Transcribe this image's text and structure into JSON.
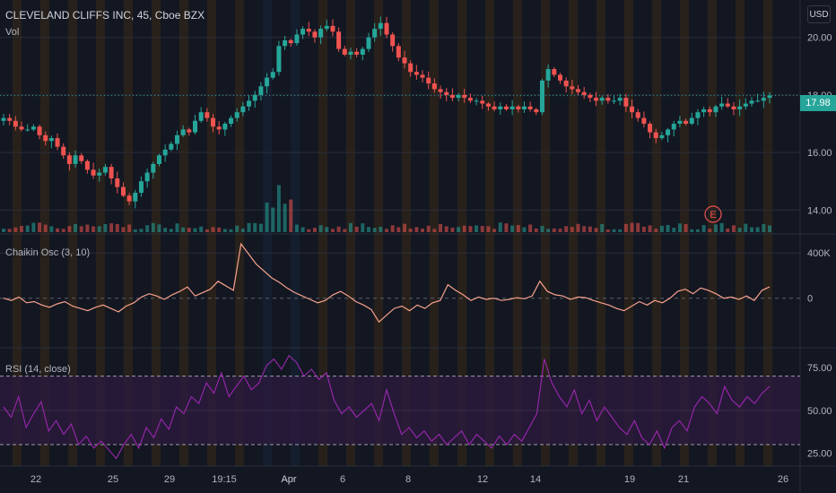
{
  "header": {
    "symbol_title": "CLEVELAND CLIFFS INC, 45, Cboe BZX",
    "volume_label": "Vol",
    "currency": "USD"
  },
  "colors": {
    "background": "#131722",
    "up": "#26a69a",
    "down": "#ef5350",
    "chaikin_line": "#f7a28c",
    "rsi_line": "#9c27b0",
    "rsi_band": "#2a1a3d",
    "session_orange": "#3a2a16",
    "session_blue": "#162538"
  },
  "chart_data": [
    {
      "type": "candlestick",
      "panel": "price",
      "title": "CLEVELAND CLIFFS INC, 45, Cboe BZX",
      "ylabel": "",
      "y_ticks": [
        "20.00",
        "18.00",
        "16.00",
        "14.00"
      ],
      "ylim": [
        13.2,
        21.3
      ],
      "last_price": "17.98",
      "x_ticks": [
        "22",
        "25",
        "29",
        "19:15",
        "Apr",
        "6",
        "8",
        "12",
        "14",
        "19",
        "21",
        "26"
      ],
      "close_path": [
        17.2,
        17.1,
        16.9,
        16.8,
        16.8,
        16.9,
        16.6,
        16.4,
        16.5,
        16.2,
        15.9,
        15.6,
        15.9,
        15.7,
        15.4,
        15.2,
        15.3,
        15.5,
        15.1,
        14.8,
        14.5,
        14.3,
        14.6,
        15.0,
        15.3,
        15.6,
        15.9,
        16.1,
        16.3,
        16.6,
        16.8,
        16.7,
        17.1,
        17.4,
        17.2,
        16.9,
        16.8,
        17.0,
        17.2,
        17.4,
        17.6,
        17.8,
        18.0,
        18.3,
        18.6,
        18.8,
        19.7,
        19.9,
        19.8,
        20.1,
        20.3,
        20.2,
        20.0,
        20.3,
        20.4,
        20.2,
        19.6,
        19.4,
        19.5,
        19.4,
        19.6,
        20.0,
        20.3,
        20.5,
        20.1,
        19.7,
        19.3,
        19.1,
        18.8,
        18.7,
        18.6,
        18.4,
        18.2,
        18.1,
        18.0,
        17.9,
        18.0,
        17.9,
        17.8,
        17.8,
        17.7,
        17.6,
        17.5,
        17.6,
        17.5,
        17.6,
        17.5,
        17.6,
        17.5,
        17.4,
        18.5,
        18.9,
        18.7,
        18.5,
        18.3,
        18.2,
        18.1,
        18.0,
        17.9,
        17.8,
        17.9,
        17.8,
        17.8,
        17.9,
        17.6,
        17.4,
        17.2,
        17.0,
        16.7,
        16.5,
        16.6,
        16.8,
        17.0,
        17.1,
        17.0,
        17.2,
        17.4,
        17.5,
        17.4,
        17.6,
        17.7,
        17.6,
        17.5,
        17.6,
        17.7,
        17.8,
        17.8,
        17.9,
        17.98
      ],
      "volume_spikes": "largest volume bars near the 19:15 / Apr session break",
      "annotation": "E"
    },
    {
      "type": "line",
      "panel": "chaikin",
      "title": "Chaikin Osc (3, 10)",
      "y_ticks": [
        "400K",
        "0"
      ],
      "ylim": [
        -430000,
        560000
      ],
      "values": [
        0,
        -20000,
        10000,
        -40000,
        -30000,
        -60000,
        -80000,
        -50000,
        -30000,
        -70000,
        -90000,
        -110000,
        -80000,
        -60000,
        -90000,
        -120000,
        -70000,
        -40000,
        10000,
        40000,
        20000,
        -10000,
        30000,
        60000,
        100000,
        20000,
        50000,
        80000,
        150000,
        110000,
        70000,
        480000,
        390000,
        300000,
        240000,
        180000,
        140000,
        90000,
        50000,
        20000,
        -10000,
        -40000,
        -20000,
        30000,
        60000,
        20000,
        -30000,
        -60000,
        -100000,
        -210000,
        -150000,
        -90000,
        -70000,
        -110000,
        -60000,
        -90000,
        -40000,
        -20000,
        120000,
        70000,
        30000,
        -20000,
        10000,
        -10000,
        0,
        -20000,
        -10000,
        5000,
        -5000,
        20000,
        150000,
        60000,
        30000,
        20000,
        -10000,
        10000,
        5000,
        -20000,
        -40000,
        -60000,
        -90000,
        -110000,
        -70000,
        -30000,
        -60000,
        -20000,
        -40000,
        0,
        60000,
        80000,
        40000,
        90000,
        70000,
        40000,
        0,
        10000,
        -10000,
        20000,
        -20000,
        70000,
        100000
      ]
    },
    {
      "type": "line",
      "panel": "rsi",
      "title": "RSI (14, close)",
      "y_ticks": [
        "75.00",
        "50.00",
        "25.00"
      ],
      "ylim": [
        18,
        86
      ],
      "bands": [
        30,
        70
      ],
      "values": [
        52,
        46,
        58,
        40,
        48,
        55,
        38,
        44,
        36,
        42,
        30,
        35,
        28,
        32,
        27,
        22,
        30,
        36,
        28,
        40,
        34,
        45,
        39,
        52,
        48,
        58,
        54,
        66,
        60,
        72,
        58,
        64,
        70,
        62,
        66,
        76,
        80,
        74,
        82,
        78,
        70,
        74,
        68,
        72,
        56,
        48,
        52,
        46,
        50,
        54,
        44,
        62,
        48,
        36,
        40,
        34,
        38,
        32,
        36,
        30,
        34,
        38,
        30,
        36,
        32,
        28,
        35,
        30,
        36,
        32,
        40,
        48,
        80,
        66,
        58,
        52,
        62,
        48,
        56,
        44,
        52,
        46,
        40,
        36,
        44,
        34,
        30,
        38,
        28,
        40,
        44,
        38,
        52,
        58,
        54,
        48,
        64,
        56,
        52,
        58,
        54,
        60,
        64
      ]
    }
  ]
}
